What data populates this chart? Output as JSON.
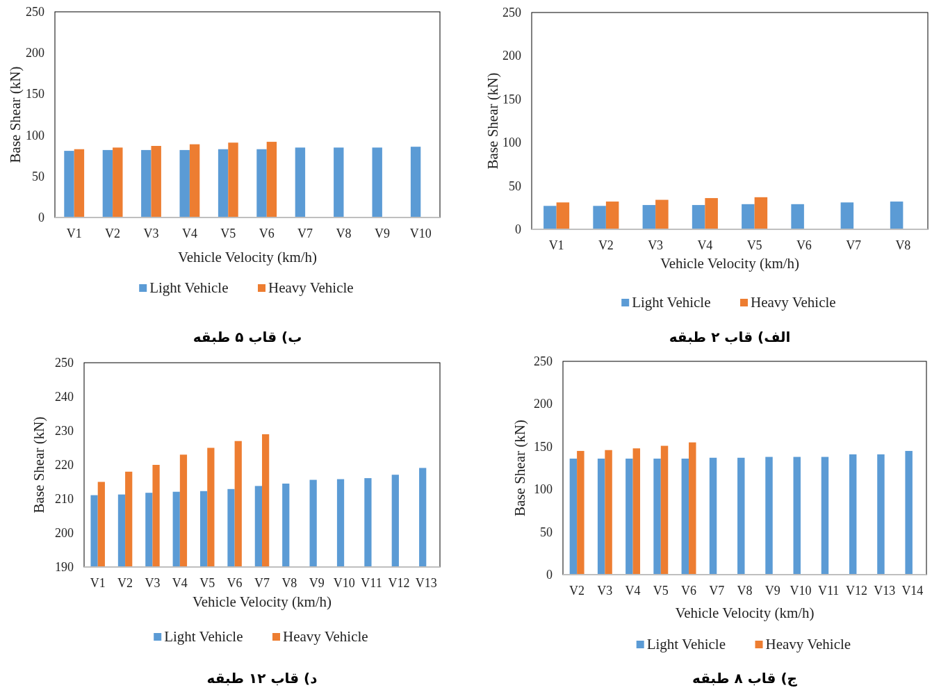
{
  "chart_data": [
    {
      "type": "bar",
      "title": "ب) قاب ۵ طبقه",
      "xlabel": "Vehicle Velocity (km/h)",
      "ylabel": "Base Shear (kN)",
      "categories": [
        "V1",
        "V2",
        "V3",
        "V4",
        "V5",
        "V6",
        "V7",
        "V8",
        "V9",
        "V10"
      ],
      "series": [
        {
          "name": "Light Vehicle",
          "color": "#5b9bd5",
          "values": [
            81,
            82,
            82,
            82,
            83,
            83,
            85,
            85,
            85,
            86
          ]
        },
        {
          "name": "Heavy Vehicle",
          "color": "#ed7d31",
          "values": [
            83,
            85,
            87,
            89,
            91,
            92,
            null,
            null,
            null,
            null
          ]
        }
      ],
      "ylim": [
        0,
        250
      ],
      "yticks": [
        0,
        50,
        100,
        150,
        200,
        250
      ],
      "legend": "bottom"
    },
    {
      "type": "bar",
      "title": "الف) قاب ۲ طبقه",
      "xlabel": "Vehicle Velocity (km/h)",
      "ylabel": "Base Shear (kN)",
      "categories": [
        "V1",
        "V2",
        "V3",
        "V4",
        "V5",
        "V6",
        "V7",
        "V8"
      ],
      "series": [
        {
          "name": "Light Vehicle",
          "color": "#5b9bd5",
          "values": [
            27,
            27,
            28,
            28,
            29,
            29,
            31,
            32
          ]
        },
        {
          "name": "Heavy Vehicle",
          "color": "#ed7d31",
          "values": [
            31,
            32,
            34,
            36,
            37,
            null,
            null,
            null
          ]
        }
      ],
      "ylim": [
        0,
        250
      ],
      "yticks": [
        0,
        50,
        100,
        150,
        200,
        250
      ],
      "legend": "bottom"
    },
    {
      "type": "bar",
      "title": "د) قاب ۱۲ طبقه",
      "xlabel": "Vehicle Velocity (km/h)",
      "ylabel": "Base Shear (kN)",
      "categories": [
        "V1",
        "V2",
        "V3",
        "V4",
        "V5",
        "V6",
        "V7",
        "V8",
        "V9",
        "V10",
        "V11",
        "V12",
        "V13"
      ],
      "series": [
        {
          "name": "Light Vehicle",
          "color": "#5b9bd5",
          "values": [
            211.1,
            211.3,
            211.8,
            212.1,
            212.3,
            212.9,
            213.8,
            214.5,
            215.6,
            215.8,
            216.1,
            217.1,
            219.1
          ]
        },
        {
          "name": "Heavy Vehicle",
          "color": "#ed7d31",
          "values": [
            215,
            218,
            220,
            223,
            225,
            227,
            229,
            null,
            null,
            null,
            null,
            null,
            null
          ]
        }
      ],
      "ylim": [
        190,
        250
      ],
      "yticks": [
        190,
        200,
        210,
        220,
        230,
        240,
        250
      ],
      "legend": "bottom"
    },
    {
      "type": "bar",
      "title": "ج) قاب ۸ طبقه",
      "xlabel": "Vehicle Velocity (km/h)",
      "ylabel": "Base Shear (kN)",
      "categories": [
        "V2",
        "V3",
        "V4",
        "V5",
        "V6",
        "V7",
        "V8",
        "V9",
        "V10",
        "V11",
        "V12",
        "V13",
        "V14"
      ],
      "series": [
        {
          "name": "Light Vehicle",
          "color": "#5b9bd5",
          "values": [
            136,
            136,
            136,
            136,
            136,
            137,
            137,
            138,
            138,
            138,
            141,
            141,
            145
          ]
        },
        {
          "name": "Heavy Vehicle",
          "color": "#ed7d31",
          "values": [
            145,
            146,
            148,
            151,
            155,
            null,
            null,
            null,
            null,
            null,
            null,
            null,
            null
          ]
        }
      ],
      "ylim": [
        0,
        250
      ],
      "yticks": [
        0,
        50,
        100,
        150,
        200,
        250
      ],
      "legend": "bottom"
    }
  ]
}
